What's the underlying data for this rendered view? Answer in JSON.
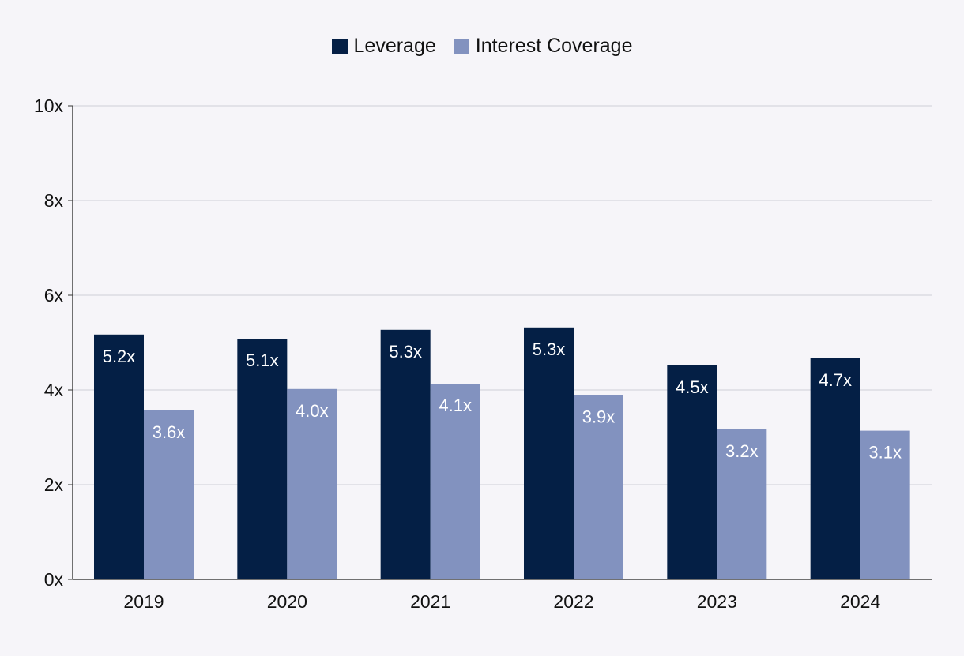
{
  "chart_data": {
    "type": "bar",
    "title": "",
    "xlabel": "",
    "ylabel": "",
    "categories": [
      "2019",
      "2020",
      "2021",
      "2022",
      "2023",
      "2024"
    ],
    "series": [
      {
        "name": "Leverage",
        "color": "#041f45",
        "values": [
          5.17,
          5.08,
          5.27,
          5.32,
          4.52,
          4.67
        ],
        "labels": [
          "5.2x",
          "5.1x",
          "5.3x",
          "5.3x",
          "4.5x",
          "4.7x"
        ]
      },
      {
        "name": "Interest Coverage",
        "color": "#8292bf",
        "values": [
          3.57,
          4.02,
          4.13,
          3.89,
          3.17,
          3.14
        ],
        "labels": [
          "3.6x",
          "4.0x",
          "4.1x",
          "3.9x",
          "3.2x",
          "3.1x"
        ]
      }
    ],
    "ylim": [
      0,
      10
    ],
    "yticks": [
      0,
      2,
      4,
      6,
      8,
      10
    ],
    "ytick_labels": [
      "0x",
      "2x",
      "4x",
      "6x",
      "8x",
      "10x"
    ],
    "grid": true,
    "legend_position": "top-center"
  }
}
